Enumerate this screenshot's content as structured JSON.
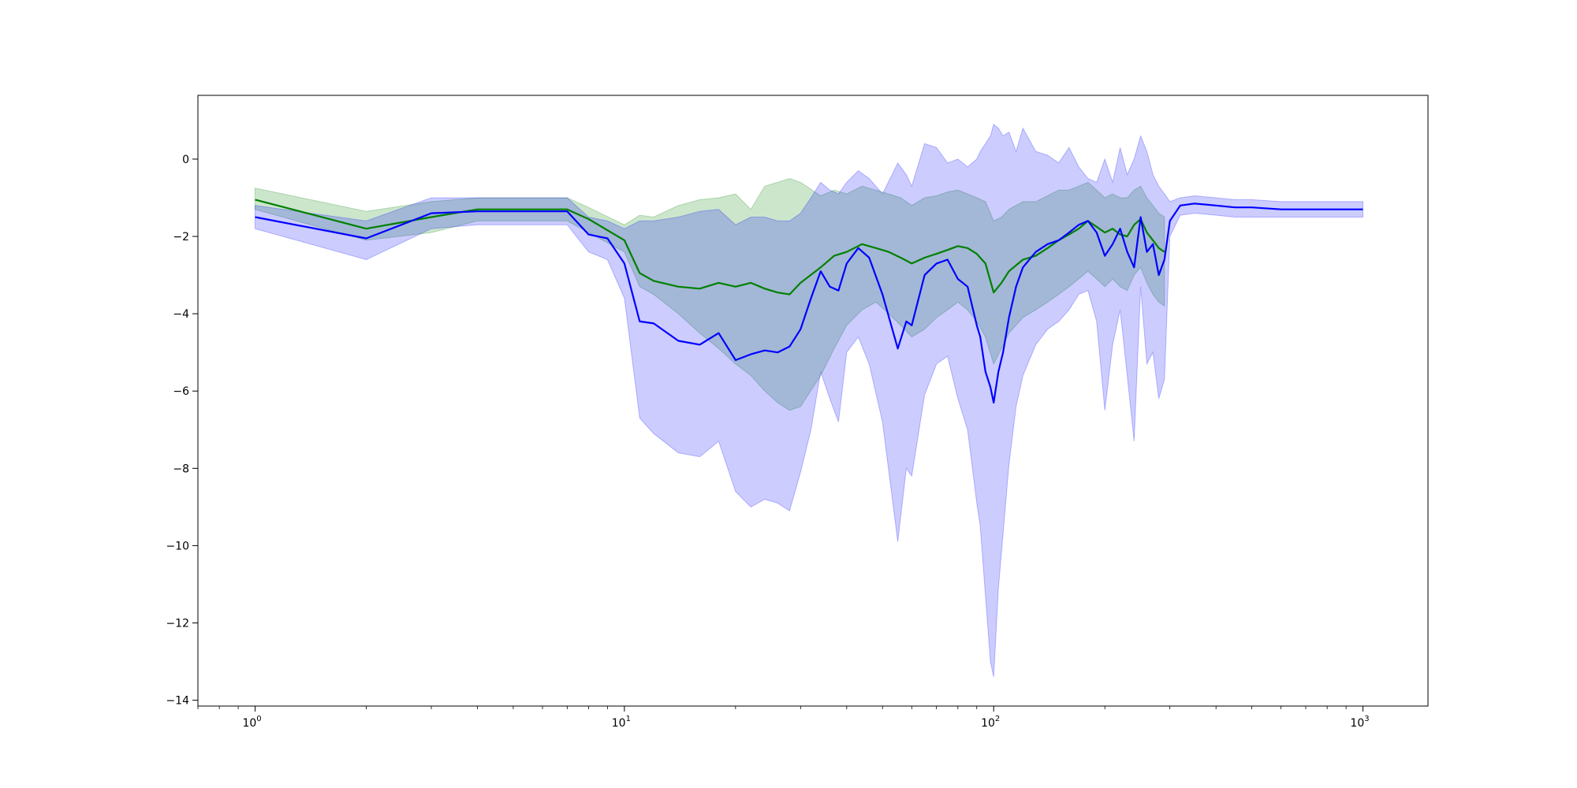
{
  "chart_data": {
    "type": "line",
    "title": "",
    "xlabel": "",
    "ylabel": "",
    "x_scale": "log",
    "xlim": [
      0.7,
      1500
    ],
    "ylim": [
      -14.15,
      1.65
    ],
    "grid": false,
    "legend": "none",
    "x_ticks": [
      {
        "base": "10",
        "exp": "0",
        "value": 1
      },
      {
        "base": "10",
        "exp": "1",
        "value": 10
      },
      {
        "base": "10",
        "exp": "2",
        "value": 100
      },
      {
        "base": "10",
        "exp": "3",
        "value": 1000
      }
    ],
    "y_ticks": [
      {
        "value": 0,
        "label": "0"
      },
      {
        "value": -2,
        "label": "−2"
      },
      {
        "value": -4,
        "label": "−4"
      },
      {
        "value": -6,
        "label": "−6"
      },
      {
        "value": -8,
        "label": "−8"
      },
      {
        "value": -10,
        "label": "−10"
      },
      {
        "value": -12,
        "label": "−12"
      },
      {
        "value": -14,
        "label": "−14"
      }
    ],
    "series": [
      {
        "color": "#008000",
        "band_color": "#008000",
        "band_opacity": 0.2,
        "x": [
          1,
          2,
          3,
          4,
          5,
          7,
          8,
          10,
          11,
          12,
          14,
          16,
          18,
          20,
          22,
          24,
          26,
          28,
          30,
          34,
          37,
          40,
          44,
          48,
          52,
          56,
          60,
          65,
          70,
          75,
          80,
          85,
          90,
          95,
          100,
          105,
          110,
          120,
          130,
          140,
          150,
          160,
          170,
          180,
          190,
          200,
          210,
          220,
          230,
          240,
          250,
          260,
          270,
          280,
          290
        ],
        "y": [
          -1.05,
          -1.8,
          -1.5,
          -1.3,
          -1.3,
          -1.3,
          -1.55,
          -2.1,
          -2.95,
          -3.15,
          -3.3,
          -3.35,
          -3.2,
          -3.3,
          -3.2,
          -3.35,
          -3.45,
          -3.5,
          -3.2,
          -2.8,
          -2.5,
          -2.4,
          -2.2,
          -2.3,
          -2.4,
          -2.55,
          -2.7,
          -2.55,
          -2.45,
          -2.35,
          -2.25,
          -2.3,
          -2.45,
          -2.7,
          -3.45,
          -3.2,
          -2.9,
          -2.6,
          -2.5,
          -2.3,
          -2.1,
          -1.95,
          -1.8,
          -1.6,
          -1.75,
          -1.9,
          -1.8,
          -1.95,
          -2.0,
          -1.7,
          -1.55,
          -1.9,
          -2.1,
          -2.3,
          -2.4
        ],
        "lower": [
          -1.3,
          -2.1,
          -1.9,
          -1.6,
          -1.6,
          -1.6,
          -1.9,
          -2.4,
          -3.3,
          -3.5,
          -4.0,
          -4.5,
          -4.9,
          -5.3,
          -5.6,
          -6.0,
          -6.3,
          -6.5,
          -6.4,
          -5.6,
          -4.9,
          -4.3,
          -3.9,
          -3.7,
          -4.0,
          -4.3,
          -4.6,
          -4.4,
          -4.1,
          -3.9,
          -3.7,
          -3.9,
          -4.2,
          -4.6,
          -5.3,
          -4.9,
          -4.5,
          -4.1,
          -3.9,
          -3.7,
          -3.5,
          -3.3,
          -3.1,
          -2.9,
          -3.1,
          -3.3,
          -3.1,
          -3.3,
          -3.4,
          -3.0,
          -2.8,
          -3.2,
          -3.5,
          -3.7,
          -3.8
        ],
        "upper": [
          -0.75,
          -1.35,
          -1.1,
          -1.0,
          -1.0,
          -1.0,
          -1.25,
          -1.7,
          -1.45,
          -1.5,
          -1.2,
          -1.05,
          -1.0,
          -0.9,
          -1.3,
          -0.7,
          -0.6,
          -0.5,
          -0.6,
          -0.95,
          -0.8,
          -0.9,
          -0.7,
          -0.8,
          -0.9,
          -1.0,
          -1.2,
          -1.0,
          -0.95,
          -0.85,
          -0.8,
          -0.9,
          -1.0,
          -1.1,
          -1.6,
          -1.5,
          -1.3,
          -1.1,
          -1.1,
          -0.95,
          -0.8,
          -0.8,
          -0.7,
          -0.6,
          -0.8,
          -1.0,
          -0.9,
          -1.0,
          -1.0,
          -0.8,
          -0.7,
          -1.0,
          -1.2,
          -1.4,
          -1.5
        ]
      },
      {
        "color": "#0000ff",
        "band_color": "#0000ff",
        "band_opacity": 0.2,
        "x": [
          1,
          2,
          3,
          4,
          5,
          7,
          8,
          9,
          10,
          11,
          12,
          14,
          16,
          18,
          20,
          22,
          24,
          26,
          28,
          30,
          32,
          34,
          36,
          38,
          40,
          43,
          46,
          50,
          55,
          58,
          60,
          65,
          70,
          75,
          80,
          85,
          90,
          92,
          95,
          98,
          100,
          103,
          106,
          110,
          115,
          120,
          130,
          140,
          150,
          160,
          170,
          180,
          190,
          200,
          210,
          220,
          230,
          240,
          250,
          260,
          270,
          280,
          290,
          300,
          320,
          350,
          400,
          450,
          500,
          600,
          700,
          800,
          900,
          1000
        ],
        "y": [
          -1.5,
          -2.05,
          -1.4,
          -1.35,
          -1.35,
          -1.35,
          -1.95,
          -2.05,
          -2.7,
          -4.2,
          -4.25,
          -4.7,
          -4.8,
          -4.5,
          -5.2,
          -5.05,
          -4.95,
          -5.0,
          -4.85,
          -4.4,
          -3.6,
          -2.9,
          -3.3,
          -3.4,
          -2.7,
          -2.3,
          -2.55,
          -3.5,
          -4.9,
          -4.2,
          -4.3,
          -3.0,
          -2.7,
          -2.6,
          -3.1,
          -3.3,
          -4.3,
          -4.6,
          -5.5,
          -5.9,
          -6.3,
          -5.5,
          -5.0,
          -4.1,
          -3.3,
          -2.8,
          -2.4,
          -2.2,
          -2.1,
          -1.9,
          -1.7,
          -1.6,
          -1.9,
          -2.5,
          -2.2,
          -1.8,
          -2.4,
          -2.8,
          -1.5,
          -2.4,
          -2.2,
          -3.0,
          -2.6,
          -1.6,
          -1.2,
          -1.15,
          -1.2,
          -1.25,
          -1.25,
          -1.3,
          -1.3,
          -1.3,
          -1.3,
          -1.3
        ],
        "lower": [
          -1.8,
          -2.6,
          -1.8,
          -1.7,
          -1.7,
          -1.7,
          -2.4,
          -2.6,
          -3.6,
          -6.7,
          -7.1,
          -7.6,
          -7.7,
          -7.3,
          -8.6,
          -9.0,
          -8.8,
          -8.9,
          -9.1,
          -8.1,
          -7.0,
          -5.5,
          -6.2,
          -6.8,
          -5.0,
          -4.6,
          -5.3,
          -6.8,
          -9.9,
          -8.0,
          -8.2,
          -6.1,
          -5.3,
          -5.1,
          -6.2,
          -7.0,
          -8.9,
          -9.5,
          -11.3,
          -13.0,
          -13.4,
          -11.1,
          -9.7,
          -7.9,
          -6.4,
          -5.6,
          -4.8,
          -4.4,
          -4.2,
          -3.9,
          -3.5,
          -3.4,
          -4.2,
          -6.5,
          -4.8,
          -3.9,
          -5.6,
          -7.3,
          -3.3,
          -5.3,
          -5.0,
          -6.2,
          -5.7,
          -2.0,
          -1.45,
          -1.4,
          -1.45,
          -1.5,
          -1.5,
          -1.5,
          -1.5,
          -1.5,
          -1.5,
          -1.5
        ],
        "upper": [
          -1.2,
          -1.6,
          -1.0,
          -1.0,
          -1.0,
          -1.0,
          -1.5,
          -1.6,
          -1.8,
          -1.6,
          -1.6,
          -1.5,
          -1.35,
          -1.3,
          -1.7,
          -1.5,
          -1.5,
          -1.6,
          -1.6,
          -1.4,
          -1.0,
          -0.6,
          -0.8,
          -0.9,
          -0.6,
          -0.3,
          -0.5,
          -0.9,
          -0.1,
          -0.4,
          -0.7,
          0.4,
          0.3,
          -0.1,
          0.0,
          -0.2,
          0.0,
          0.2,
          0.4,
          0.6,
          0.9,
          0.8,
          0.6,
          0.7,
          0.2,
          0.8,
          0.2,
          0.1,
          -0.1,
          0.3,
          -0.2,
          -0.5,
          -0.6,
          0.0,
          -0.6,
          0.3,
          -0.4,
          0.0,
          0.6,
          0.2,
          -0.4,
          -0.7,
          -0.9,
          -1.1,
          -1.0,
          -0.95,
          -1.0,
          -1.05,
          -1.05,
          -1.1,
          -1.1,
          -1.1,
          -1.1,
          -1.1
        ]
      }
    ]
  }
}
